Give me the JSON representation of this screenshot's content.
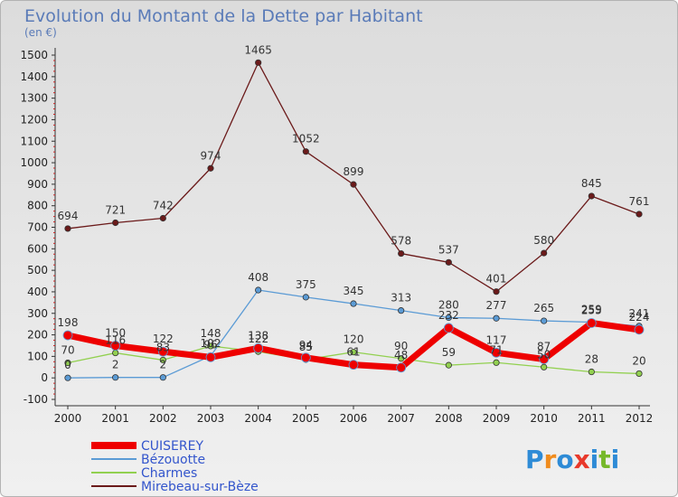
{
  "chart_data": {
    "type": "line",
    "title": "Evolution du Montant de la Dette par Habitant",
    "subtitle": "(en €)",
    "categories": [
      "2000",
      "2001",
      "2002",
      "2003",
      "2004",
      "2005",
      "2006",
      "2007",
      "2008",
      "2009",
      "2010",
      "2011",
      "2012"
    ],
    "ylim": [
      -100,
      1500
    ],
    "yticks": [
      -100,
      0,
      100,
      200,
      300,
      400,
      500,
      600,
      700,
      800,
      900,
      1000,
      1100,
      1200,
      1300,
      1400,
      1500
    ],
    "grid": false,
    "legend_position": "bottom-left",
    "series": [
      {
        "name": "Mirebeau-sur-Bèze",
        "color": "#6b1a1a",
        "width": 1.3,
        "values": [
          694,
          721,
          742,
          974,
          1465,
          1052,
          899,
          578,
          537,
          401,
          580,
          845,
          761
        ]
      },
      {
        "name": "Bézouotte",
        "color": "#5b9bd5",
        "width": 1.3,
        "values": [
          0,
          2,
          2,
          102,
          408,
          375,
          345,
          313,
          280,
          277,
          265,
          259,
          241
        ]
      },
      {
        "name": "Charmes",
        "color": "#92d050",
        "width": 1.3,
        "values": [
          70,
          116,
          83,
          148,
          122,
          85,
          120,
          90,
          59,
          71,
          50,
          28,
          20
        ]
      },
      {
        "name": "CUISEREY",
        "color": "#ee0000",
        "width": 7,
        "values": [
          198,
          150,
          122,
          96,
          138,
          94,
          61,
          48,
          232,
          117,
          87,
          255,
          224
        ]
      }
    ],
    "legend_order": [
      "CUISEREY",
      "Bézouotte",
      "Charmes",
      "Mirebeau-sur-Bèze"
    ],
    "legend_color": "#3355cc"
  },
  "logo": {
    "text": "Proxiti",
    "colors": [
      "#2e8bd6",
      "#f08c1e",
      "#2e8bd6",
      "#e8392b",
      "#2e8bd6",
      "#76b82a",
      "#2e8bd6"
    ]
  }
}
